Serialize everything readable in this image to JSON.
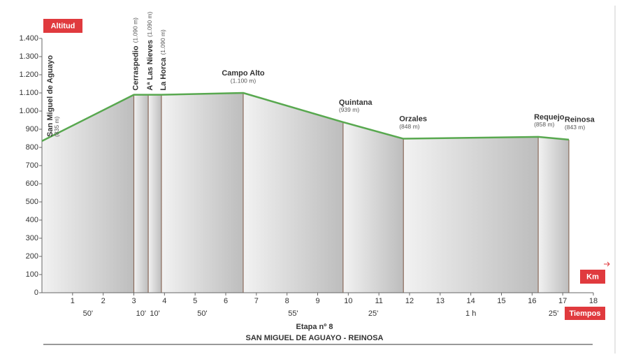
{
  "chart_data": {
    "type": "profile",
    "title": "Etapa nº 8",
    "subtitle": "SAN MIGUEL DE AGUAYO - REINOSA",
    "y_label": "Altitud",
    "x_label": "Km",
    "time_label": "Tiempos",
    "color": "#58a84f",
    "x": [
      0,
      3.0,
      3.47,
      3.9,
      6.57,
      9.83,
      11.8,
      16.2,
      17.2
    ],
    "names": [
      "San Miguel de Aguayo",
      "Cerraspedio",
      "Aª Las Nieves",
      "La Horca",
      "Campo Alto",
      "Quintana",
      "Orzales",
      "Requejo",
      "Reinosa"
    ],
    "values": [
      835,
      1090,
      1090,
      1090,
      1100,
      939,
      848,
      858,
      843
    ],
    "value_labels": [
      "(835 m)",
      "(1.090 m)",
      "(1.090 m)",
      "(1.090 m)",
      "(1.100 m)",
      "(939 m)",
      "(848 m)",
      "(858 m)",
      "(843 m)"
    ],
    "times": [
      "50'",
      "10'",
      "10'",
      "50'",
      "55'",
      "25'",
      "1 h",
      "25'"
    ],
    "xlim": [
      0,
      18
    ],
    "xticks": [
      1,
      2,
      3,
      4,
      5,
      6,
      7,
      8,
      9,
      10,
      11,
      12,
      13,
      14,
      15,
      16,
      17,
      18
    ],
    "ylim": [
      0,
      1400
    ],
    "yticks": [
      0,
      100,
      200,
      300,
      400,
      500,
      600,
      700,
      800,
      900,
      {
        "value": 1000,
        "label": "1.000"
      },
      {
        "value": 1100,
        "label": "1.100"
      },
      {
        "value": 1200,
        "label": "1.200"
      },
      {
        "value": 1300,
        "label": "1.300"
      },
      {
        "value": 1400,
        "label": "1.400"
      }
    ]
  }
}
